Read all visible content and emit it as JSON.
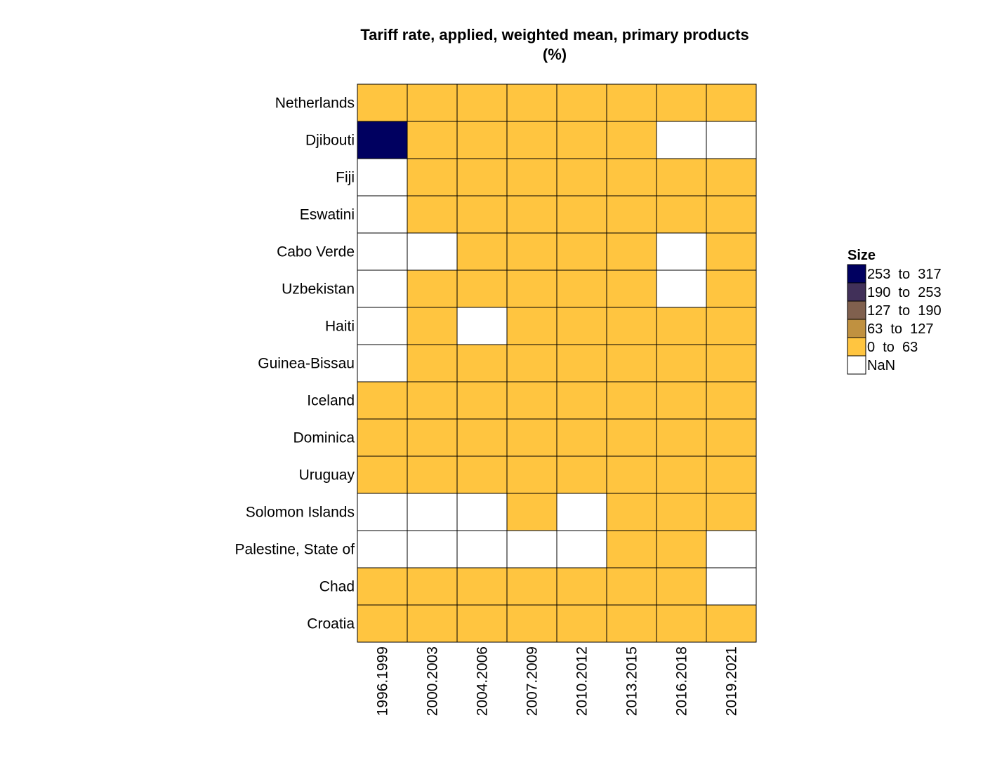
{
  "chart_data": {
    "type": "heatmap",
    "title": "Tariff rate, applied, weighted mean, primary products",
    "subtitle": "(%)",
    "rows": [
      "Netherlands",
      "Djibouti",
      "Fiji",
      "Eswatini",
      "Cabo Verde",
      "Uzbekistan",
      "Haiti",
      "Guinea-Bissau",
      "Iceland",
      "Dominica",
      "Uruguay",
      "Solomon Islands",
      "Palestine, State of",
      "Chad",
      "Croatia"
    ],
    "columns": [
      "1996.1999",
      "2000.2003",
      "2004.2006",
      "2007.2009",
      "2010.2012",
      "2013.2015",
      "2016.2018",
      "2019.2021"
    ],
    "bins": [
      {
        "label": "253  to  317",
        "color": "#000060"
      },
      {
        "label": "190  to  253",
        "color": "#413059"
      },
      {
        "label": "127  to  190",
        "color": "#80604e"
      },
      {
        "label": "63  to  127",
        "color": "#c09140"
      },
      {
        "label": "0  to  63",
        "color": "#ffc540"
      },
      {
        "label": "NaN",
        "color": "#ffffff"
      }
    ],
    "cells": [
      [
        4,
        4,
        4,
        4,
        4,
        4,
        4,
        4
      ],
      [
        0,
        4,
        4,
        4,
        4,
        4,
        5,
        5
      ],
      [
        5,
        4,
        4,
        4,
        4,
        4,
        4,
        4
      ],
      [
        5,
        4,
        4,
        4,
        4,
        4,
        4,
        4
      ],
      [
        5,
        5,
        4,
        4,
        4,
        4,
        5,
        4
      ],
      [
        5,
        4,
        4,
        4,
        4,
        4,
        5,
        4
      ],
      [
        5,
        4,
        5,
        4,
        4,
        4,
        4,
        4
      ],
      [
        5,
        4,
        4,
        4,
        4,
        4,
        4,
        4
      ],
      [
        4,
        4,
        4,
        4,
        4,
        4,
        4,
        4
      ],
      [
        4,
        4,
        4,
        4,
        4,
        4,
        4,
        4
      ],
      [
        4,
        4,
        4,
        4,
        4,
        4,
        4,
        4
      ],
      [
        5,
        5,
        5,
        4,
        5,
        4,
        4,
        4
      ],
      [
        5,
        5,
        5,
        5,
        5,
        4,
        4,
        5
      ],
      [
        4,
        4,
        4,
        4,
        4,
        4,
        4,
        5
      ],
      [
        4,
        4,
        4,
        4,
        4,
        4,
        4,
        4
      ]
    ],
    "legend": {
      "title": "Size",
      "placement": "right"
    },
    "grid": false
  }
}
